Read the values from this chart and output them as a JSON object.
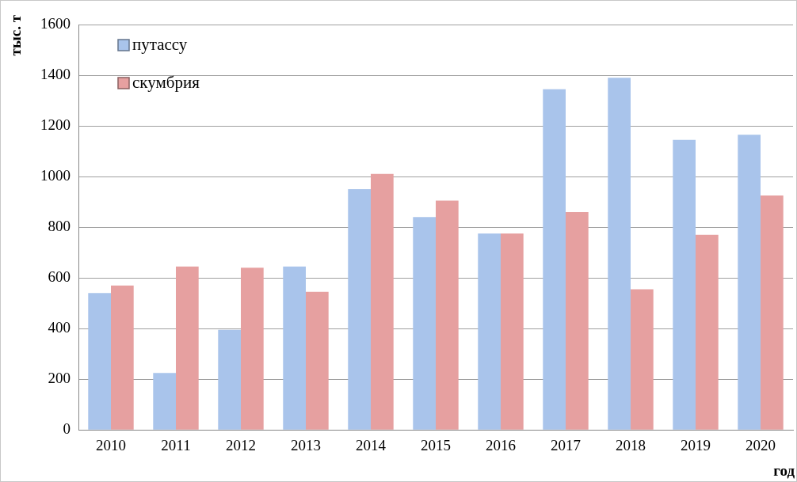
{
  "chart_data": {
    "type": "bar",
    "xlabel": "год",
    "ylabel": "тыс. т",
    "categories": [
      "2010",
      "2011",
      "2012",
      "2013",
      "2014",
      "2015",
      "2016",
      "2017",
      "2018",
      "2019",
      "2020"
    ],
    "series": [
      {
        "name": "путассу",
        "color": "#a9c4eb",
        "values": [
          540,
          225,
          395,
          645,
          950,
          840,
          775,
          1345,
          1390,
          1145,
          1165
        ]
      },
      {
        "name": "скумбрия",
        "color": "#e6a0a0",
        "values": [
          570,
          645,
          640,
          545,
          1010,
          905,
          775,
          860,
          555,
          770,
          925
        ]
      }
    ],
    "ylim": [
      0,
      1600
    ],
    "yticks": [
      0,
      200,
      400,
      600,
      800,
      1000,
      1200,
      1400,
      1600
    ],
    "grid": "y",
    "legend": "top left"
  }
}
